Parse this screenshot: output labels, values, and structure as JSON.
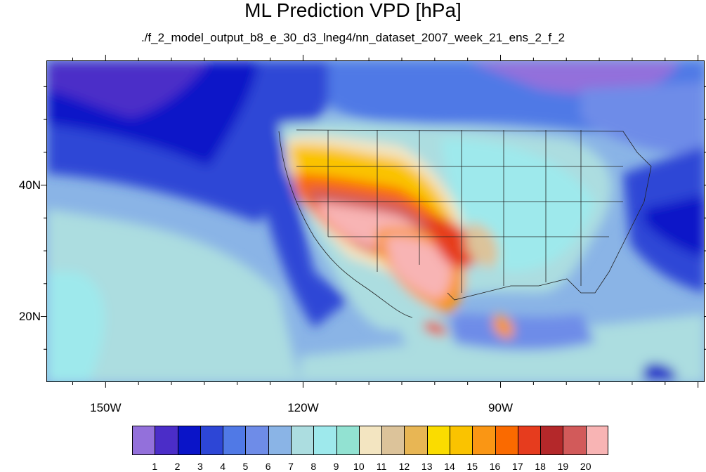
{
  "title": "ML Prediction VPD [hPa]",
  "subtitle": "./f_2_model_output_b8_e_30_d3_lneg4/nn_dataset_2007_week_21_ens_2_f_2",
  "axes": {
    "lat_labels": [
      "40N",
      "20N"
    ],
    "lon_labels": [
      "150W",
      "120W",
      "90W"
    ],
    "lon_range": [
      -159,
      -59
    ],
    "lat_range": [
      10,
      59
    ]
  },
  "colorbar": {
    "labels": [
      "1",
      "2",
      "3",
      "4",
      "5",
      "6",
      "7",
      "8",
      "9",
      "10",
      "11",
      "12",
      "13",
      "14",
      "15",
      "16",
      "17",
      "18",
      "19",
      "20"
    ],
    "colors": [
      "#9370db",
      "#4b2dc8",
      "#0a14c8",
      "#2d46d6",
      "#5079e6",
      "#6e8ce8",
      "#8ab4e6",
      "#acdde0",
      "#9ee9ec",
      "#92e2d2",
      "#f3e5c1",
      "#dcc39a",
      "#e8b654",
      "#fadc00",
      "#fac300",
      "#fa9614",
      "#fa6a00",
      "#e63c1e",
      "#b4282a",
      "#d25a5a",
      "#f8b4b4"
    ]
  },
  "legend_levels_note": ""
}
